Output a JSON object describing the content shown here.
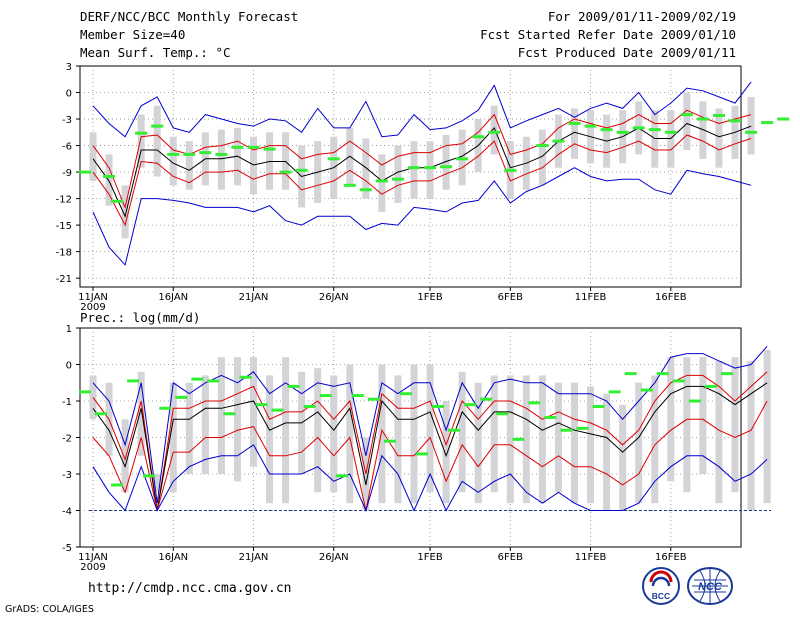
{
  "header": {
    "title": "DERF/NCC/BCC Monthly Forecast",
    "member_size": "Member Size=40",
    "variable": "Mean Surf. Temp.: °C",
    "period": "For 2009/01/11-2009/02/19",
    "started": "Fcst Started Refer Date 2009/01/10",
    "produced": "Fcst Produced Date 2009/01/11"
  },
  "footer": {
    "url": "http://cmdp.ncc.cma.gov.cn",
    "credit": "GrADS: COLA/IGES",
    "logo_bcc": "BCC",
    "logo_ncc": "NCC"
  },
  "colors": {
    "envelope": "#0000cc",
    "quantile": "#dd0000",
    "mean": "#000000",
    "box": "#d3d3d8",
    "obs": "#33ee33",
    "grid": "#888888"
  },
  "chart_data": [
    {
      "type": "line",
      "title": "Mean Surf. Temp.: °C",
      "ylim": [
        -22,
        3
      ],
      "yticks": [
        3,
        0,
        -3,
        -6,
        -9,
        -12,
        -15,
        -18,
        -21
      ],
      "xticks": [
        "11JAN",
        "16JAN",
        "21JAN",
        "26JAN",
        "1FEB",
        "6FEB",
        "11FEB",
        "16FEB"
      ],
      "xtick_days": [
        0,
        5,
        10,
        15,
        21,
        26,
        31,
        36
      ],
      "year_label": "2009",
      "series": [
        {
          "name": "max",
          "values": [
            -1.5,
            -3.5,
            -5,
            -1.5,
            -0.5,
            -4,
            -4.5,
            -2.5,
            -3,
            -3.5,
            -3.8,
            -3,
            -3.2,
            -4.5,
            -1.8,
            -4,
            -4,
            -1,
            -5,
            -4.8,
            -2.5,
            -4.2,
            -4,
            -3.2,
            -2,
            0.8,
            -4,
            -3.2,
            -2.5,
            -1.8,
            -2.8,
            -1.8,
            -1.2,
            -1.8,
            0,
            -2.5,
            -1.2,
            0.5,
            0.2,
            -0.5,
            -1.2,
            1.2
          ]
        },
        {
          "name": "q80",
          "values": [
            -6,
            -8.5,
            -13,
            -5,
            -4.8,
            -6.5,
            -7,
            -6.2,
            -6,
            -5.5,
            -6.5,
            -6,
            -6,
            -7.5,
            -7,
            -6.8,
            -5.5,
            -6.8,
            -8.2,
            -7.2,
            -6.8,
            -6.8,
            -6,
            -5.8,
            -4.5,
            -2.5,
            -7,
            -6.5,
            -5.8,
            -4,
            -3,
            -3.5,
            -4,
            -3.5,
            -2.5,
            -3.5,
            -3.5,
            -2,
            -2.8,
            -3.5,
            -3,
            -2.5
          ]
        },
        {
          "name": "mean",
          "values": [
            -7.5,
            -10,
            -14,
            -6.5,
            -6.5,
            -8,
            -8.8,
            -7.5,
            -7.5,
            -7.2,
            -8.2,
            -7.8,
            -7.8,
            -9.5,
            -9,
            -8.5,
            -7.2,
            -8.5,
            -10,
            -9,
            -8.5,
            -8.5,
            -7.8,
            -7.2,
            -6,
            -4,
            -8.5,
            -8,
            -7.2,
            -5.5,
            -4.5,
            -5,
            -5.5,
            -5,
            -4,
            -5.2,
            -5.2,
            -3.5,
            -4.2,
            -5,
            -4.5,
            -3.8
          ]
        },
        {
          "name": "q20",
          "values": [
            -9,
            -11.5,
            -15,
            -7.8,
            -8,
            -9.5,
            -10.2,
            -9,
            -9,
            -8.8,
            -9.8,
            -9.2,
            -9.2,
            -11,
            -10.5,
            -10,
            -8.8,
            -10,
            -11.5,
            -10.5,
            -10,
            -10,
            -9.2,
            -8.5,
            -7.2,
            -5.5,
            -10,
            -9.2,
            -8.5,
            -7,
            -5.8,
            -6.5,
            -6.8,
            -6.2,
            -5.5,
            -6.5,
            -6.5,
            -4.8,
            -5.5,
            -6.5,
            -5.8,
            -5.2
          ]
        },
        {
          "name": "min",
          "values": [
            -13.5,
            -17.5,
            -19.5,
            -12,
            -12,
            -12.2,
            -12.5,
            -13,
            -13,
            -13,
            -13.5,
            -12.8,
            -14.5,
            -15,
            -14,
            -14,
            -14,
            -15.5,
            -14.8,
            -15,
            -13,
            -13.2,
            -13.5,
            -12.5,
            -12.2,
            -10,
            -12.5,
            -11.2,
            -10.5,
            -9.5,
            -8.5,
            -9.5,
            -10,
            -9.8,
            -9.8,
            -11,
            -11.5,
            -8.8,
            -9.2,
            -9.5,
            -10,
            -10.5
          ]
        }
      ],
      "boxes_low": [
        -10,
        -12.8,
        -16.5,
        -8.5,
        -9.5,
        -10.5,
        -11,
        -10.5,
        -11,
        -10.5,
        -11.5,
        -11,
        -11,
        -13,
        -12.5,
        -12,
        -10.5,
        -12,
        -13.5,
        -12.5,
        -12,
        -12,
        -11,
        -10.5,
        -9,
        -7,
        -12,
        -11,
        -10.5,
        -8.5,
        -7.5,
        -8,
        -8.5,
        -8,
        -7,
        -8.5,
        -8.5,
        -6.5,
        -7.5,
        -8.5,
        -7.5,
        -7
      ],
      "boxes_high": [
        -4.5,
        -7,
        -10.5,
        -2.5,
        -1.5,
        -5,
        -5.5,
        -4.5,
        -4.2,
        -4,
        -5,
        -4.5,
        -4.5,
        -6,
        -5.5,
        -5,
        -4,
        -5.2,
        -7,
        -6,
        -5.5,
        -5.5,
        -4.8,
        -4.2,
        -3,
        -1.5,
        -5.5,
        -5,
        -4.2,
        -2.5,
        -1.8,
        -2,
        -2.5,
        -2,
        -1,
        -2,
        -2,
        0,
        -1,
        -1.8,
        -1.5,
        -0.5
      ],
      "observed": [
        -9,
        -9.5,
        -12.3,
        -4.6,
        -3.8,
        -7,
        -7,
        -6.8,
        -7,
        -6.2,
        -6.2,
        -6.4,
        -9,
        -8.8,
        -7.5,
        -10.5,
        -11,
        -10,
        -9.8,
        -8.5,
        -8.5,
        -8.4,
        -7.5,
        -5,
        -4.5,
        -8.8,
        -6,
        -5.5,
        -3.5,
        -3.8,
        -4.2,
        -4.5,
        -4,
        -4.2,
        -4.5,
        -2.5,
        -3,
        -2.6,
        -3.2,
        -4.5,
        -3.4,
        -3
      ],
      "obs_days": [
        -0.5,
        1,
        1.5,
        3,
        4,
        5,
        6,
        7,
        8,
        9,
        10,
        11,
        12,
        13,
        15,
        16,
        17,
        18,
        19,
        20,
        21,
        22,
        23,
        24,
        25,
        26,
        28,
        29,
        30,
        31,
        32,
        33,
        34,
        35,
        36,
        37,
        38,
        39,
        40,
        41,
        42,
        43
      ]
    },
    {
      "type": "line",
      "title": "Prec.: log(mm/d)",
      "ylim": [
        -5,
        1
      ],
      "yticks": [
        1,
        0,
        -1,
        -2,
        -3,
        -4,
        -5
      ],
      "xticks": [
        "11JAN",
        "16JAN",
        "21JAN",
        "26JAN",
        "1FEB",
        "6FEB",
        "11FEB",
        "16FEB"
      ],
      "xtick_days": [
        0,
        5,
        10,
        15,
        21,
        26,
        31,
        36
      ],
      "year_label": "2009",
      "series": [
        {
          "name": "max",
          "values": [
            -0.5,
            -1,
            -2.2,
            -0.5,
            -3.8,
            -0.5,
            -0.8,
            -0.5,
            -0.3,
            -0.5,
            -0.2,
            -0.8,
            -0.5,
            -0.8,
            -0.5,
            -0.6,
            -0.5,
            -2.5,
            -0.5,
            -0.8,
            -0.5,
            -0.5,
            -1.8,
            -0.5,
            -1.2,
            -0.5,
            -0.4,
            -0.5,
            -0.5,
            -0.8,
            -0.8,
            -0.8,
            -1,
            -1.5,
            -1,
            -0.5,
            0.2,
            0.3,
            0.3,
            0.1,
            -0.1,
            0,
            0.5
          ]
        },
        {
          "name": "q80",
          "values": [
            -0.9,
            -1.5,
            -2.6,
            -1,
            -4,
            -1.2,
            -1.2,
            -1,
            -1,
            -0.8,
            -0.6,
            -1.5,
            -1.3,
            -1.3,
            -1,
            -1.5,
            -1,
            -3,
            -0.8,
            -1.2,
            -1.2,
            -1,
            -2.2,
            -1,
            -1.5,
            -1,
            -1,
            -1.2,
            -1.5,
            -1.3,
            -1.5,
            -1.6,
            -1.8,
            -2.2,
            -1.8,
            -1,
            -0.5,
            -0.3,
            -0.3,
            -0.6,
            -1,
            -0.6,
            -0.2
          ]
        },
        {
          "name": "mean",
          "values": [
            -1.2,
            -1.8,
            -2.8,
            -1.2,
            -4,
            -1.5,
            -1.5,
            -1.2,
            -1.2,
            -1.1,
            -1,
            -1.8,
            -1.6,
            -1.6,
            -1.3,
            -1.8,
            -1.2,
            -3.3,
            -1,
            -1.5,
            -1.5,
            -1.3,
            -2.5,
            -1.3,
            -1.8,
            -1.3,
            -1.3,
            -1.5,
            -1.8,
            -1.6,
            -1.8,
            -1.9,
            -2,
            -2.4,
            -2,
            -1.3,
            -0.8,
            -0.6,
            -0.6,
            -0.8,
            -1.1,
            -0.8,
            -0.5
          ]
        },
        {
          "name": "q20",
          "values": [
            -2,
            -2.5,
            -3.5,
            -2,
            -4,
            -2.4,
            -2.4,
            -2,
            -2,
            -1.8,
            -1.7,
            -2.5,
            -2.5,
            -2.4,
            -2,
            -2.5,
            -2,
            -4,
            -1.8,
            -2.5,
            -2.5,
            -2,
            -3.2,
            -2.2,
            -2.8,
            -2.2,
            -2.2,
            -2.5,
            -2.8,
            -2.5,
            -2.8,
            -2.8,
            -3,
            -3.3,
            -3,
            -2.2,
            -1.8,
            -1.5,
            -1.5,
            -1.8,
            -2,
            -1.8,
            -1
          ]
        },
        {
          "name": "min",
          "values": [
            -2.8,
            -3.5,
            -4,
            -2.8,
            -4,
            -3.2,
            -2.8,
            -2.6,
            -2.5,
            -2.5,
            -2.2,
            -3,
            -3,
            -3,
            -2.8,
            -3.2,
            -3,
            -4,
            -2.5,
            -3,
            -4,
            -3,
            -4,
            -3.2,
            -3.5,
            -3.2,
            -3,
            -3.5,
            -3.8,
            -3.5,
            -3.8,
            -4,
            -4,
            -4,
            -3.8,
            -3.2,
            -2.8,
            -2.5,
            -2.5,
            -2.8,
            -3.2,
            -3,
            -2.6
          ]
        }
      ],
      "baseline": -4,
      "boxes_low": [
        -1.5,
        -2.5,
        -3.5,
        -2.5,
        -3.5,
        -3.5,
        -3,
        -3,
        -3,
        -3.2,
        -2.8,
        -3.8,
        -3.8,
        -3,
        -3.5,
        -3.5,
        -3.8,
        -4,
        -3.8,
        -3.8,
        -3.8,
        -3.5,
        -3.8,
        -3.5,
        -3.8,
        -3.5,
        -3.8,
        -3.8,
        -3.8,
        -3.5,
        -3.8,
        -3.8,
        -4,
        -4,
        -3.8,
        -3.8,
        -3.2,
        -3.5,
        -3,
        -3.8,
        -3.5,
        -4,
        -3.8
      ],
      "boxes_high": [
        -0.3,
        -0.5,
        -1.5,
        -0.2,
        -3,
        -0.5,
        -0.5,
        -0.3,
        0.2,
        0.2,
        0.2,
        -0.3,
        0.2,
        -0.2,
        -0.1,
        -0.3,
        0,
        -2,
        0,
        -0.3,
        0,
        0,
        -1,
        -0.2,
        -0.5,
        -0.3,
        -0.3,
        -0.3,
        -0.3,
        -0.5,
        -0.5,
        -0.6,
        -0.8,
        -1.1,
        -0.5,
        -0.3,
        0.2,
        0.2,
        0.2,
        0.1,
        0.2,
        0.1,
        0.4
      ],
      "observed": [
        -0.75,
        -1.35,
        -3.3,
        -0.45,
        -3.05,
        -1.2,
        -0.9,
        -0.4,
        -0.45,
        -1.35,
        -0.35,
        -1.1,
        -1.25,
        -0.6,
        -1.15,
        -0.85,
        -3.05,
        -0.85,
        -0.95,
        -2.1,
        -0.8,
        -2.45,
        -1.15,
        -1.8,
        -1.1,
        -0.95,
        -1.35,
        -2.05,
        -1.05,
        -1.45,
        -1.8,
        -1.75,
        -1.15,
        -0.75,
        -0.25,
        -0.7,
        -0.25,
        -0.45,
        -1.0,
        -0.6,
        -0.25
      ],
      "obs_days": [
        -0.5,
        0.5,
        1.5,
        2.5,
        3.5,
        4.5,
        5.5,
        6.5,
        7.5,
        8.5,
        9.5,
        10.5,
        11.5,
        12.5,
        13.5,
        14.5,
        15.5,
        16.5,
        17.5,
        18.5,
        19.5,
        20.5,
        21.5,
        22.5,
        23.5,
        24.5,
        25.5,
        26.5,
        27.5,
        28.5,
        29.5,
        30.5,
        31.5,
        32.5,
        33.5,
        34.5,
        35.5,
        36.5,
        37.5,
        38.5,
        39.5
      ]
    }
  ]
}
